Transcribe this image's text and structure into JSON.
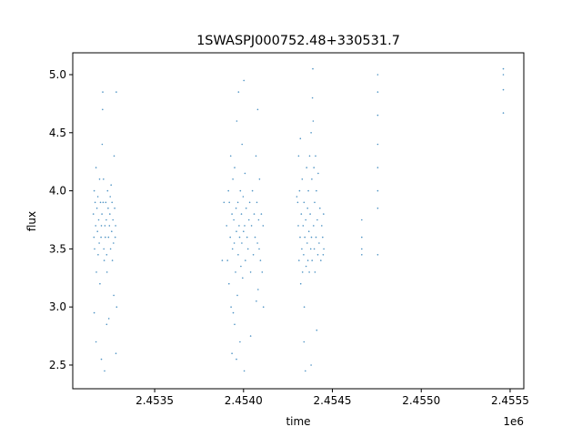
{
  "chart_data": {
    "type": "scatter",
    "title": "1SWASPJ000752.48+330531.7",
    "xlabel": "time",
    "ylabel": "flux",
    "x_offset_label": "1e6",
    "xlim": [
      2453039,
      2455577
    ],
    "ylim": [
      2.296,
      5.188
    ],
    "xticks": [
      2453500,
      2454000,
      2454500,
      2455000,
      2455500
    ],
    "xtick_labels": [
      "2.4535",
      "2.4540",
      "2.4545",
      "2.4550",
      "2.4555"
    ],
    "yticks": [
      2.5,
      3.0,
      3.5,
      4.0,
      4.5,
      5.0
    ],
    "ytick_labels": [
      "2.5",
      "3.0",
      "3.5",
      "4.0",
      "4.5",
      "5.0"
    ],
    "grid": false,
    "marker_color": "#1f77b4",
    "points": [
      [
        2453155,
        3.8
      ],
      [
        2453158,
        3.6
      ],
      [
        2453160,
        4.0
      ],
      [
        2453162,
        3.5
      ],
      [
        2453165,
        3.9
      ],
      [
        2453168,
        3.7
      ],
      [
        2453170,
        4.2
      ],
      [
        2453172,
        3.3
      ],
      [
        2453175,
        3.85
      ],
      [
        2453178,
        3.65
      ],
      [
        2453180,
        3.95
      ],
      [
        2453182,
        3.45
      ],
      [
        2453185,
        3.75
      ],
      [
        2453188,
        3.55
      ],
      [
        2453190,
        4.1
      ],
      [
        2453192,
        3.2
      ],
      [
        2453195,
        3.9
      ],
      [
        2453198,
        3.6
      ],
      [
        2453200,
        3.7
      ],
      [
        2453203,
        3.8
      ],
      [
        2453205,
        4.4
      ],
      [
        2453207,
        4.7
      ],
      [
        2453208,
        4.85
      ],
      [
        2453210,
        3.9
      ],
      [
        2453212,
        4.1
      ],
      [
        2453214,
        3.5
      ],
      [
        2453216,
        3.4
      ],
      [
        2453218,
        2.45
      ],
      [
        2453220,
        3.7
      ],
      [
        2453222,
        3.6
      ],
      [
        2453225,
        3.9
      ],
      [
        2453228,
        3.75
      ],
      [
        2453230,
        3.45
      ],
      [
        2453232,
        3.3
      ],
      [
        2453235,
        4.0
      ],
      [
        2453238,
        3.85
      ],
      [
        2453240,
        3.6
      ],
      [
        2453242,
        2.9
      ],
      [
        2453245,
        3.7
      ],
      [
        2453248,
        3.8
      ],
      [
        2453250,
        3.95
      ],
      [
        2453252,
        3.5
      ],
      [
        2453255,
        4.05
      ],
      [
        2453258,
        3.65
      ],
      [
        2453260,
        3.9
      ],
      [
        2453262,
        3.4
      ],
      [
        2453265,
        3.75
      ],
      [
        2453268,
        3.55
      ],
      [
        2453270,
        3.1
      ],
      [
        2453272,
        4.3
      ],
      [
        2453275,
        3.85
      ],
      [
        2453278,
        3.6
      ],
      [
        2453280,
        3.7
      ],
      [
        2453282,
        2.6
      ],
      [
        2453284,
        4.85
      ],
      [
        2453286,
        3.0
      ],
      [
        2453160,
        2.95
      ],
      [
        2453170,
        2.7
      ],
      [
        2453200,
        2.55
      ],
      [
        2453230,
        2.85
      ],
      [
        2453905,
        3.7
      ],
      [
        2453910,
        3.4
      ],
      [
        2453915,
        4.0
      ],
      [
        2453918,
        3.2
      ],
      [
        2453920,
        3.9
      ],
      [
        2453925,
        3.6
      ],
      [
        2453928,
        4.3
      ],
      [
        2453930,
        3.0
      ],
      [
        2453935,
        3.8
      ],
      [
        2453938,
        3.5
      ],
      [
        2453940,
        4.1
      ],
      [
        2453942,
        2.95
      ],
      [
        2453945,
        3.75
      ],
      [
        2453948,
        3.55
      ],
      [
        2453950,
        4.2
      ],
      [
        2453955,
        3.3
      ],
      [
        2453958,
        3.85
      ],
      [
        2453960,
        3.65
      ],
      [
        2453962,
        4.6
      ],
      [
        2453965,
        3.1
      ],
      [
        2453968,
        3.9
      ],
      [
        2453970,
        3.45
      ],
      [
        2453972,
        4.85
      ],
      [
        2453975,
        3.7
      ],
      [
        2453978,
        3.6
      ],
      [
        2453980,
        2.7
      ],
      [
        2453982,
        4.0
      ],
      [
        2453985,
        3.35
      ],
      [
        2453988,
        3.8
      ],
      [
        2453990,
        3.55
      ],
      [
        2453992,
        4.4
      ],
      [
        2453995,
        3.25
      ],
      [
        2453998,
        3.95
      ],
      [
        2454000,
        3.65
      ],
      [
        2454002,
        4.95
      ],
      [
        2454004,
        2.45
      ],
      [
        2454006,
        3.7
      ],
      [
        2454008,
        4.15
      ],
      [
        2454010,
        3.4
      ],
      [
        2454015,
        3.85
      ],
      [
        2454020,
        3.6
      ],
      [
        2454025,
        3.5
      ],
      [
        2454030,
        3.75
      ],
      [
        2454035,
        3.9
      ],
      [
        2454040,
        3.3
      ],
      [
        2454045,
        3.7
      ],
      [
        2454050,
        4.0
      ],
      [
        2454055,
        3.45
      ],
      [
        2454060,
        3.8
      ],
      [
        2454065,
        3.6
      ],
      [
        2454070,
        4.3
      ],
      [
        2454072,
        3.05
      ],
      [
        2454075,
        3.9
      ],
      [
        2454078,
        3.55
      ],
      [
        2454080,
        4.7
      ],
      [
        2454082,
        3.15
      ],
      [
        2454085,
        3.75
      ],
      [
        2454088,
        3.5
      ],
      [
        2454090,
        4.1
      ],
      [
        2454095,
        3.4
      ],
      [
        2454100,
        3.8
      ],
      [
        2454105,
        3.3
      ],
      [
        2454110,
        3.7
      ],
      [
        2454112,
        3.0
      ],
      [
        2453935,
        2.6
      ],
      [
        2453960,
        2.55
      ],
      [
        2454040,
        2.75
      ],
      [
        2453880,
        3.4
      ],
      [
        2453890,
        3.9
      ],
      [
        2453950,
        2.85
      ],
      [
        2454305,
        3.9
      ],
      [
        2454308,
        3.7
      ],
      [
        2454310,
        4.3
      ],
      [
        2454312,
        3.4
      ],
      [
        2454315,
        4.0
      ],
      [
        2454318,
        3.6
      ],
      [
        2454320,
        4.45
      ],
      [
        2454322,
        3.2
      ],
      [
        2454325,
        3.8
      ],
      [
        2454328,
        3.5
      ],
      [
        2454330,
        4.1
      ],
      [
        2454332,
        3.3
      ],
      [
        2454335,
        3.7
      ],
      [
        2454338,
        3.45
      ],
      [
        2454340,
        3.9
      ],
      [
        2454342,
        3.0
      ],
      [
        2454345,
        3.6
      ],
      [
        2454348,
        2.45
      ],
      [
        2454350,
        3.75
      ],
      [
        2454352,
        3.35
      ],
      [
        2454355,
        4.2
      ],
      [
        2454358,
        3.55
      ],
      [
        2454360,
        3.85
      ],
      [
        2454362,
        3.4
      ],
      [
        2454365,
        4.0
      ],
      [
        2454368,
        3.65
      ],
      [
        2454370,
        3.3
      ],
      [
        2454372,
        4.3
      ],
      [
        2454375,
        3.8
      ],
      [
        2454378,
        3.5
      ],
      [
        2454380,
        4.5
      ],
      [
        2454382,
        3.6
      ],
      [
        2454384,
        4.1
      ],
      [
        2454386,
        3.4
      ],
      [
        2454388,
        4.8
      ],
      [
        2454390,
        5.05
      ],
      [
        2454392,
        4.6
      ],
      [
        2454394,
        3.7
      ],
      [
        2454396,
        4.2
      ],
      [
        2454398,
        3.5
      ],
      [
        2454400,
        3.9
      ],
      [
        2454402,
        3.3
      ],
      [
        2454405,
        4.3
      ],
      [
        2454408,
        3.6
      ],
      [
        2454410,
        4.0
      ],
      [
        2454412,
        2.8
      ],
      [
        2454415,
        3.75
      ],
      [
        2454418,
        3.45
      ],
      [
        2454420,
        4.15
      ],
      [
        2454425,
        3.55
      ],
      [
        2454430,
        3.85
      ],
      [
        2454435,
        3.4
      ],
      [
        2454440,
        3.7
      ],
      [
        2454445,
        3.6
      ],
      [
        2454448,
        3.45
      ],
      [
        2454450,
        3.8
      ],
      [
        2454452,
        3.5
      ],
      [
        2454340,
        2.7
      ],
      [
        2454380,
        2.5
      ],
      [
        2454300,
        3.95
      ],
      [
        2454665,
        3.75
      ],
      [
        2454665,
        3.6
      ],
      [
        2454665,
        3.5
      ],
      [
        2454665,
        3.45
      ],
      [
        2454755,
        5.0
      ],
      [
        2454755,
        4.85
      ],
      [
        2454755,
        4.65
      ],
      [
        2454755,
        4.4
      ],
      [
        2454755,
        4.2
      ],
      [
        2454755,
        4.0
      ],
      [
        2454755,
        3.85
      ],
      [
        2454755,
        3.45
      ],
      [
        2455462,
        5.05
      ],
      [
        2455462,
        5.0
      ],
      [
        2455462,
        4.87
      ],
      [
        2455462,
        4.67
      ]
    ]
  }
}
